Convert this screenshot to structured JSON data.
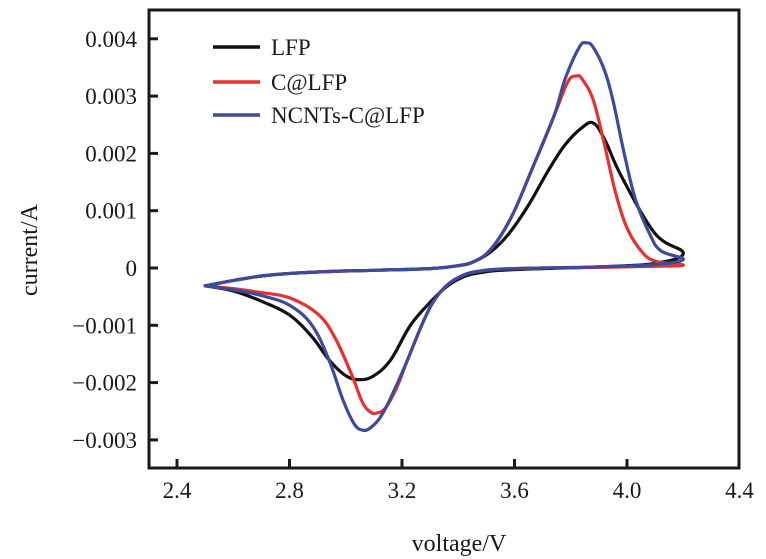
{
  "chart_data": {
    "type": "line",
    "title": "",
    "xlabel": "voltage/V",
    "ylabel": "current/A",
    "xlim": [
      2.3,
      4.4
    ],
    "ylim": [
      -0.0035,
      0.0045
    ],
    "xticks": [
      2.4,
      2.8,
      3.2,
      3.6,
      4.0,
      4.4
    ],
    "xtick_labels": [
      "2.4",
      "2.8",
      "3.2",
      "3.6",
      "4.0",
      "4.4"
    ],
    "yticks": [
      0.004,
      0.003,
      0.002,
      0.001,
      0,
      -0.001,
      -0.002,
      -0.003
    ],
    "ytick_labels": [
      "0.004",
      "0.003",
      "0.002",
      "0.001",
      "0",
      "−0.001",
      "−0.002",
      "−0.003"
    ],
    "grid": false,
    "legend_position": "top-left",
    "series": [
      {
        "name": "LFP",
        "color": "#111111",
        "x": [
          2.5,
          2.6,
          2.7,
          2.8,
          2.88,
          2.94,
          3.0,
          3.05,
          3.1,
          3.16,
          3.23,
          3.3,
          3.36,
          3.42,
          3.48,
          3.55,
          3.7,
          3.9,
          4.1,
          4.2,
          4.1,
          3.98,
          3.92,
          3.88,
          3.84,
          3.78,
          3.72,
          3.65,
          3.58,
          3.52,
          3.46,
          3.4,
          3.3,
          3.1,
          2.9,
          2.7,
          2.5
        ],
        "y": [
          -0.00031,
          -0.0004,
          -0.00058,
          -0.00082,
          -0.0012,
          -0.0016,
          -0.00188,
          -0.00195,
          -0.00188,
          -0.0016,
          -0.001,
          -0.0006,
          -0.00032,
          -0.00015,
          -8e-05,
          -4e-05,
          -1e-05,
          2e-05,
          8e-05,
          0.00026,
          0.0006,
          0.0016,
          0.00225,
          0.00253,
          0.00245,
          0.00215,
          0.0017,
          0.0011,
          0.0006,
          0.0003,
          0.00012,
          4e-05,
          -1e-05,
          -4e-05,
          -7e-05,
          -0.00014,
          -0.00031
        ]
      },
      {
        "name": "C@LFP",
        "color": "#e8312f",
        "x": [
          2.5,
          2.6,
          2.7,
          2.8,
          2.9,
          2.96,
          3.02,
          3.06,
          3.09,
          3.11,
          3.14,
          3.18,
          3.22,
          3.27,
          3.31,
          3.36,
          3.42,
          3.48,
          3.55,
          3.7,
          3.9,
          4.1,
          4.2,
          4.1,
          4.05,
          4.0,
          3.96,
          3.92,
          3.88,
          3.84,
          3.82,
          3.79,
          3.74,
          3.66,
          3.59,
          3.52,
          3.46,
          3.4,
          3.3,
          3.1,
          2.9,
          2.7,
          2.5
        ],
        "y": [
          -0.00031,
          -0.00036,
          -0.00043,
          -0.00052,
          -0.0008,
          -0.0012,
          -0.00185,
          -0.00235,
          -0.00252,
          -0.00253,
          -0.00245,
          -0.0021,
          -0.0016,
          -0.001,
          -0.0006,
          -0.0003,
          -0.00012,
          -5e-05,
          -2e-05,
          0.0,
          1e-05,
          3e-05,
          5e-05,
          0.00012,
          0.0003,
          0.0007,
          0.0013,
          0.00215,
          0.00293,
          0.0033,
          0.00335,
          0.00325,
          0.00265,
          0.0017,
          0.0009,
          0.00035,
          0.00012,
          4e-05,
          -1e-05,
          -4e-05,
          -7e-05,
          -0.00014,
          -0.00031
        ]
      },
      {
        "name": "NCNTs-C@LFP",
        "color": "#3e4a9b",
        "x": [
          2.5,
          2.6,
          2.7,
          2.8,
          2.88,
          2.94,
          2.99,
          3.03,
          3.06,
          3.09,
          3.13,
          3.18,
          3.22,
          3.27,
          3.31,
          3.36,
          3.42,
          3.48,
          3.55,
          3.7,
          3.9,
          4.1,
          4.2,
          4.12,
          4.08,
          4.03,
          3.99,
          3.95,
          3.92,
          3.88,
          3.855,
          3.83,
          3.78,
          3.74,
          3.66,
          3.59,
          3.52,
          3.46,
          3.4,
          3.3,
          3.1,
          2.9,
          2.7,
          2.5
        ],
        "y": [
          -0.00031,
          -0.00038,
          -0.00048,
          -0.00065,
          -0.001,
          -0.0016,
          -0.0023,
          -0.00272,
          -0.00283,
          -0.00278,
          -0.00255,
          -0.00205,
          -0.0016,
          -0.001,
          -0.0006,
          -0.0003,
          -0.00012,
          -5e-05,
          -2e-05,
          0.0,
          2e-05,
          6e-05,
          0.00015,
          0.0003,
          0.0006,
          0.0012,
          0.002,
          0.00293,
          0.00345,
          0.00385,
          0.00393,
          0.00385,
          0.0033,
          0.00265,
          0.0017,
          0.0009,
          0.00035,
          0.00012,
          4e-05,
          -1e-05,
          -4e-05,
          -7e-05,
          -0.00014,
          -0.00031
        ]
      }
    ]
  }
}
